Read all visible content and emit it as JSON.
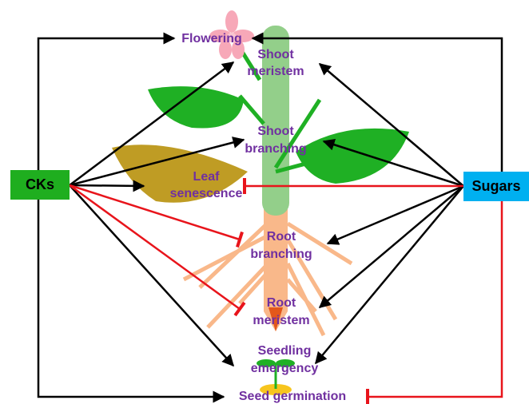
{
  "nodes": [
    {
      "label": "CKs"
    },
    {
      "label": "Sugars"
    },
    {
      "lines": [
        "Flowering"
      ]
    },
    {
      "lines": [
        "Shoot",
        "meristem"
      ]
    },
    {
      "lines": [
        "Shoot",
        "branching"
      ]
    },
    {
      "lines": [
        "Leaf",
        "senescence"
      ]
    },
    {
      "lines": [
        "Root",
        "branching"
      ]
    },
    {
      "lines": [
        "Root",
        "meristem"
      ]
    },
    {
      "lines": [
        "Seedling",
        "emergency"
      ]
    },
    {
      "lines": [
        "Seed germination"
      ]
    }
  ]
}
